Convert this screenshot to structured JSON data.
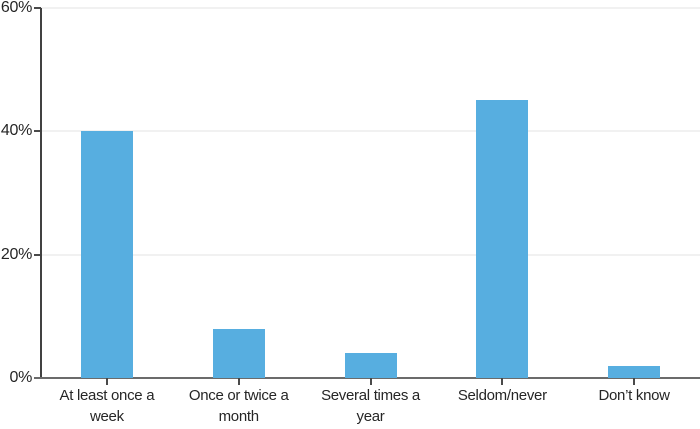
{
  "chart_data": {
    "type": "bar",
    "title": "",
    "xlabel": "",
    "ylabel": "",
    "categories": [
      "At least once a week",
      "Once or twice a month",
      "Several times a year",
      "Seldom/never",
      "Don’t know"
    ],
    "values": [
      40,
      8,
      4,
      45,
      2
    ],
    "unit": "%",
    "ylim": [
      0,
      60
    ],
    "yticks": [
      0,
      20,
      40,
      60
    ],
    "ytick_labels": [
      "0%",
      "20%",
      "40%",
      "60%"
    ],
    "grid": true,
    "legend": "none",
    "colors": {
      "bar": "#57AEE0",
      "y_axis": "#414141",
      "x_axis": "#6b6b6b",
      "gridline": "#f1f1f1",
      "tick": "#4a4a4a",
      "label": "#262626",
      "background": "#ffffff"
    }
  }
}
